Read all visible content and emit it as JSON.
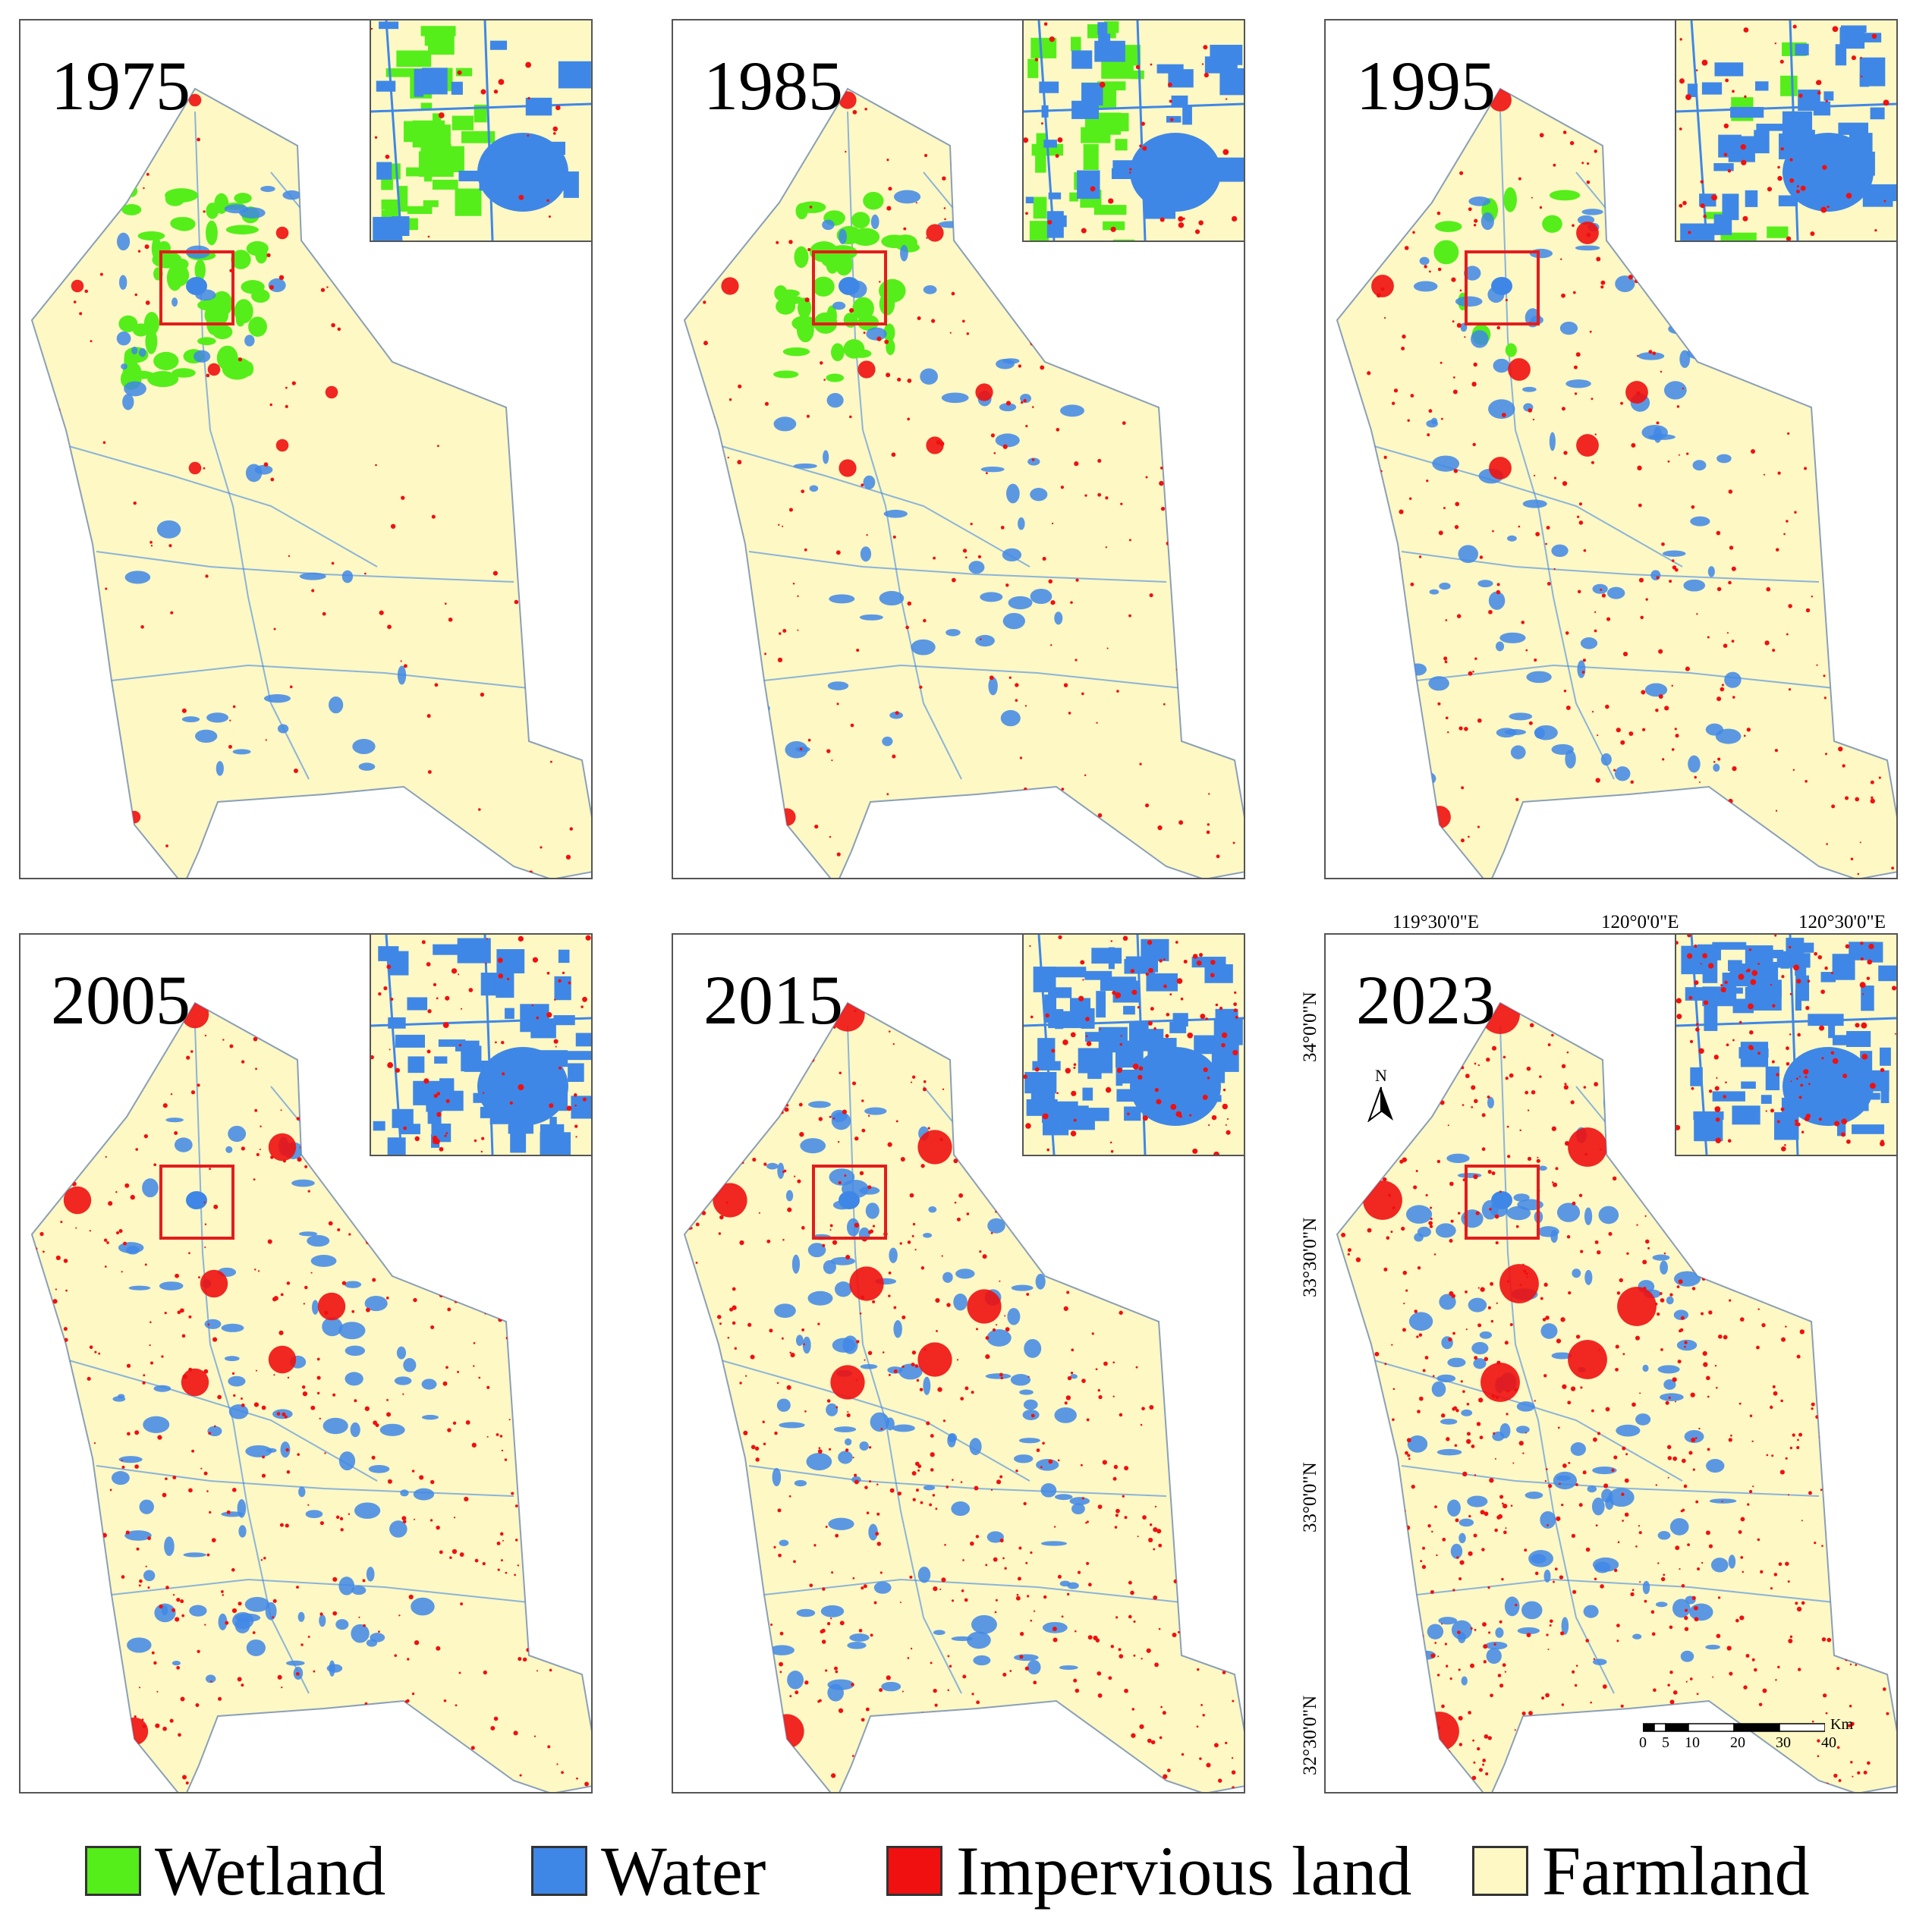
{
  "panels": [
    {
      "year": "1975",
      "wetland": 0.9,
      "water": 0.25,
      "impervious": 0.15
    },
    {
      "year": "1985",
      "wetland": 0.65,
      "water": 0.4,
      "impervious": 0.3
    },
    {
      "year": "1995",
      "wetland": 0.15,
      "water": 0.6,
      "impervious": 0.45
    },
    {
      "year": "2005",
      "wetland": 0.0,
      "water": 0.75,
      "impervious": 0.6
    },
    {
      "year": "2015",
      "wetland": 0.0,
      "water": 0.85,
      "impervious": 0.8
    },
    {
      "year": "2023",
      "wetland": 0.0,
      "water": 0.9,
      "impervious": 0.95
    }
  ],
  "colors": {
    "wetland": "#55ee1a",
    "water": "#3f87e6",
    "impervious": "#f01010",
    "farmland": "#fdf8c4",
    "highlight": "#e21d1d"
  },
  "coordinates": {
    "lon_labels": [
      "119°30'0\"E",
      "120°0'0\"E",
      "120°30'0\"E"
    ],
    "lat_labels": [
      "34°0'0\"N",
      "33°30'0\"N",
      "33°0'0\"N",
      "32°30'0\"N"
    ]
  },
  "north_arrow": {
    "label": "N"
  },
  "scale_bar": {
    "unit": "Km",
    "ticks": [
      "0",
      "5",
      "10",
      "20",
      "30",
      "40"
    ]
  },
  "legend": [
    {
      "label": "Wetland",
      "color_key": "wetland"
    },
    {
      "label": "Water",
      "color_key": "water"
    },
    {
      "label": "Impervious land",
      "color_key": "impervious"
    },
    {
      "label": "Farmland",
      "color_key": "farmland"
    }
  ]
}
